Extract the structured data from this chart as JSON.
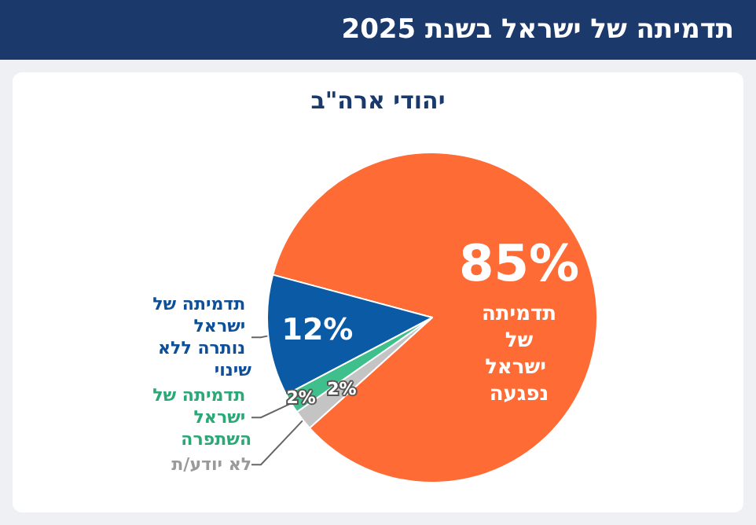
{
  "chart_data": {
    "type": "pie",
    "title": "תדמיתה של ישראל בשנת 2025",
    "subtitle": "יהודי ארה\"ב",
    "categories": [
      "תדמיתה של ישראל נפגעה",
      "לא יודע/ת",
      "תדמיתה של ישראל השתפרה",
      "תדמיתה של ישראל נותרה ללא שינוי"
    ],
    "values": [
      85,
      2,
      2,
      12
    ],
    "value_labels": [
      "85%",
      "2%",
      "2%",
      "12%"
    ],
    "colors": [
      "#ff6b35",
      "#c4c4c4",
      "#3fbf8c",
      "#0b5aa6"
    ],
    "legend": false
  }
}
